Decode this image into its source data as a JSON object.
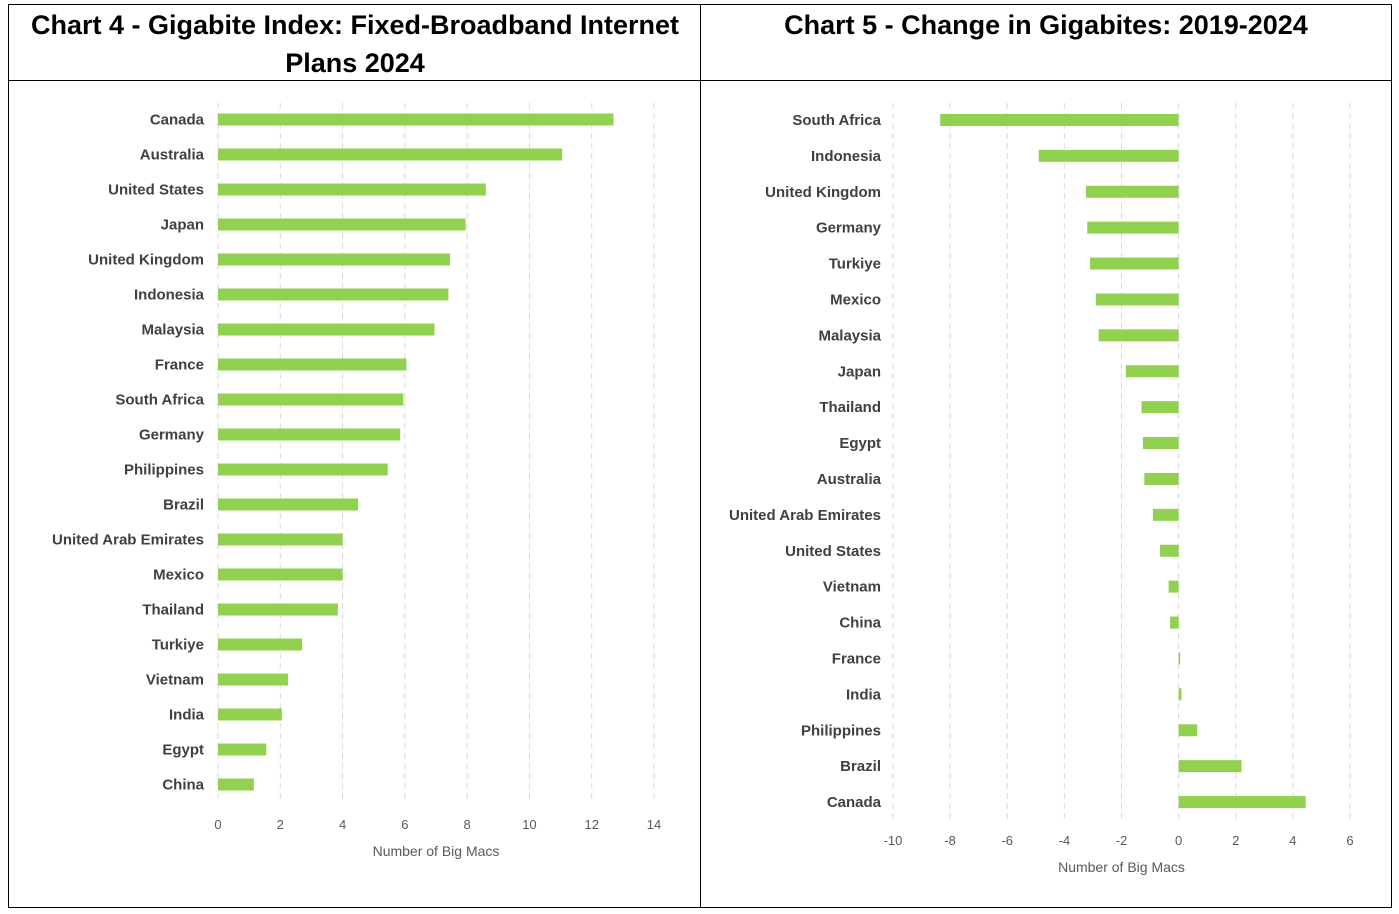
{
  "colors": {
    "bar": "#92D050",
    "grid": "#D9D9D9",
    "label": "#404040",
    "tick": "#595959"
  },
  "chart_data": [
    {
      "type": "bar",
      "orientation": "horizontal",
      "title": "Chart 4 - Gigabite Index: Fixed-Broadband Internet Plans 2024",
      "xlabel": "Number of Big Macs",
      "ylabel": "",
      "xlim": [
        0,
        14
      ],
      "ticks": [
        0,
        2,
        4,
        6,
        8,
        10,
        12,
        14
      ],
      "tick_labels": [
        "0",
        "2",
        "4",
        "6",
        "8",
        "10",
        "12",
        "14"
      ],
      "grid": true,
      "categories": [
        "Canada",
        "Australia",
        "United States",
        "Japan",
        "United Kingdom",
        "Indonesia",
        "Malaysia",
        "France",
        "South Africa",
        "Germany",
        "Philippines",
        "Brazil",
        "United Arab Emirates",
        "Mexico",
        "Thailand",
        "Turkiye",
        "Vietnam",
        "India",
        "Egypt",
        "China"
      ],
      "values": [
        12.7,
        11.05,
        8.6,
        7.95,
        7.45,
        7.4,
        6.95,
        6.05,
        5.95,
        5.85,
        5.45,
        4.5,
        4.0,
        4.0,
        3.85,
        2.7,
        2.25,
        2.05,
        1.55,
        1.15
      ]
    },
    {
      "type": "bar",
      "orientation": "horizontal",
      "title": "Chart 5 - Change in Gigabites: 2019-2024",
      "xlabel": "Number of Big Macs",
      "ylabel": "",
      "xlim": [
        -10,
        6
      ],
      "ticks": [
        -10,
        -8,
        -6,
        -4,
        -2,
        0,
        2,
        4,
        6
      ],
      "tick_labels": [
        "-10",
        "-8",
        "-6",
        "-4",
        "-2",
        "0",
        "2",
        "4",
        "6"
      ],
      "grid": true,
      "categories": [
        "South Africa",
        "Indonesia",
        "United Kingdom",
        "Germany",
        "Turkiye",
        "Mexico",
        "Malaysia",
        "Japan",
        "Thailand",
        "Egypt",
        "Australia",
        "United Arab Emirates",
        "United States",
        "Vietnam",
        "China",
        "France",
        "India",
        "Philippines",
        "Brazil",
        "Canada"
      ],
      "values": [
        -8.35,
        -4.9,
        -3.25,
        -3.2,
        -3.1,
        -2.9,
        -2.8,
        -1.85,
        -1.3,
        -1.25,
        -1.2,
        -0.9,
        -0.65,
        -0.35,
        -0.3,
        0.05,
        0.1,
        0.65,
        2.2,
        4.45
      ]
    }
  ]
}
